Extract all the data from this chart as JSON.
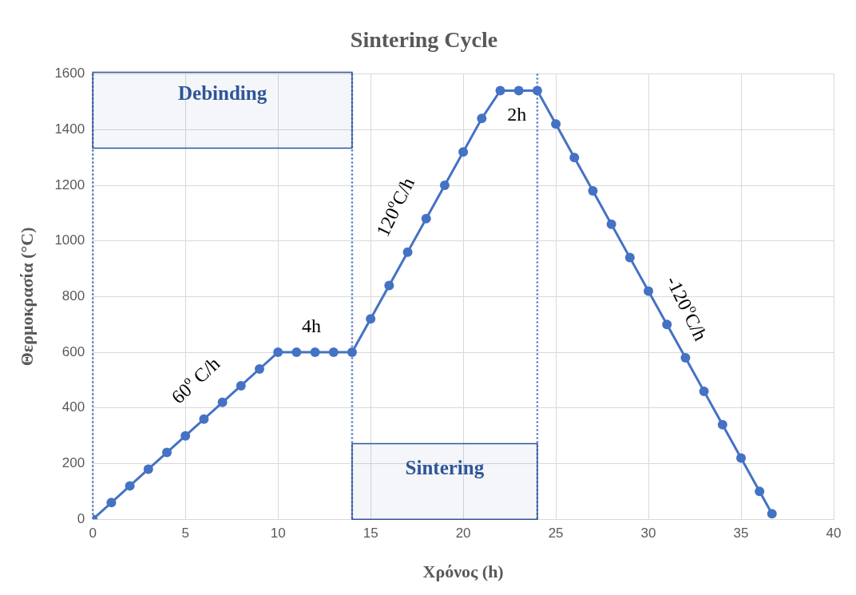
{
  "chart_data": {
    "type": "line",
    "title": "Sintering Cycle",
    "xlabel": "Χρόνος (h)",
    "ylabel": "Θερμοκρασία (°C)",
    "x": [
      0,
      1,
      2,
      3,
      4,
      5,
      6,
      7,
      8,
      9,
      10,
      11,
      12,
      13,
      14,
      15,
      16,
      17,
      18,
      19,
      20,
      21,
      22,
      23,
      24,
      25,
      26,
      27,
      28,
      29,
      30,
      31,
      32,
      33,
      34,
      35,
      36,
      36.67
    ],
    "series": [
      {
        "color": "#4472c4",
        "values": [
          0,
          60,
          120,
          180,
          240,
          300,
          360,
          420,
          480,
          540,
          600,
          600,
          600,
          600,
          600,
          720,
          840,
          960,
          1080,
          1200,
          1320,
          1440,
          1540,
          1540,
          1540,
          1420,
          1300,
          1180,
          1060,
          940,
          820,
          700,
          580,
          460,
          340,
          220,
          100,
          20
        ]
      }
    ],
    "xlim": [
      0,
      40
    ],
    "xticks": [
      0,
      5,
      10,
      15,
      20,
      25,
      30,
      35,
      40
    ],
    "ylim": [
      0,
      1600
    ],
    "yticks": [
      0,
      200,
      400,
      600,
      800,
      1000,
      1200,
      1400,
      1600
    ],
    "grid": true,
    "marker": "circle",
    "line_style": "solid",
    "ref_lines": [
      {
        "axis": "x",
        "value": 0,
        "color": "#4472c4",
        "line_style": "dotted"
      },
      {
        "axis": "x",
        "value": 14,
        "color": "#4472c4",
        "line_style": "dotted"
      },
      {
        "axis": "x",
        "value": 24,
        "color": "#4472c4",
        "line_style": "dotted"
      }
    ],
    "bands": [
      {
        "axis": "x",
        "from": 0,
        "to": 14,
        "label": "Debinding",
        "color": "#2f5597"
      },
      {
        "axis": "x",
        "from": 14,
        "to": 24,
        "label": "Sintering",
        "color": "#2f5597"
      }
    ],
    "annotations": [
      "60$^{o}$ C/h",
      "4h",
      "120$^{o}$C/h",
      "2h",
      "-120$^{o}$C/h"
    ]
  }
}
